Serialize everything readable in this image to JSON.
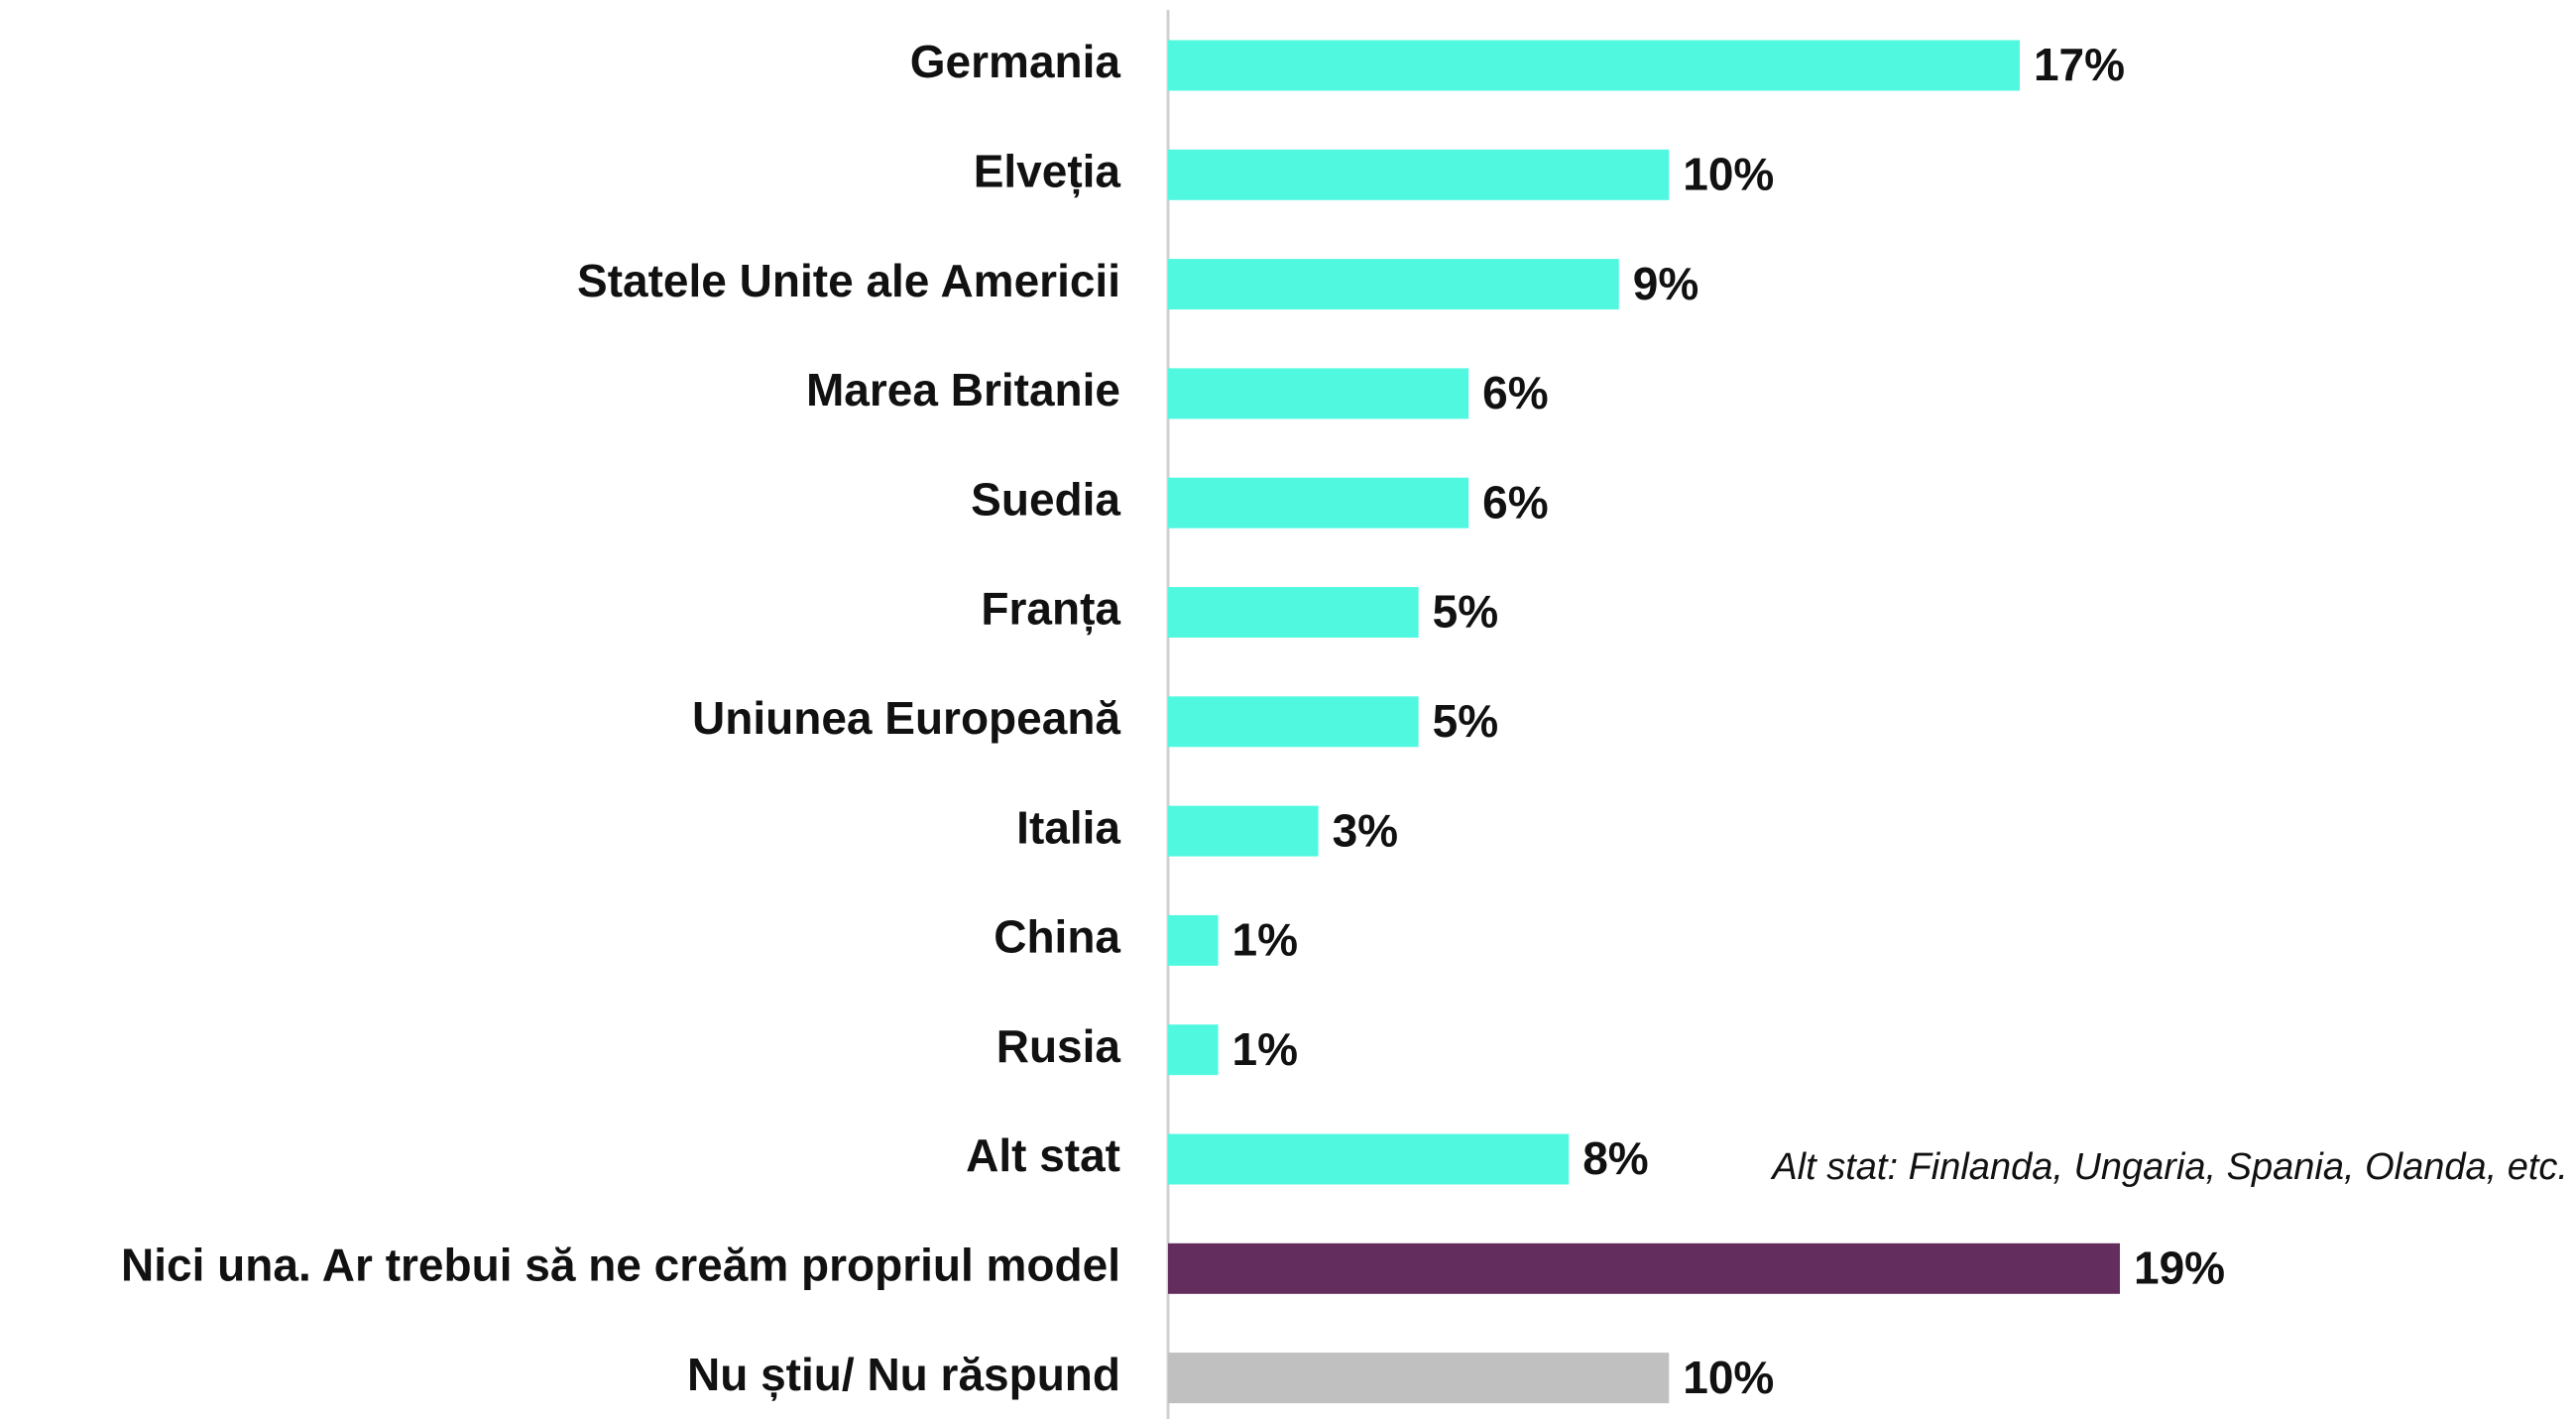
{
  "chart_data": {
    "type": "bar",
    "orientation": "horizontal",
    "categories": [
      "Germania",
      "Elveția",
      "Statele Unite ale Americii",
      "Marea Britanie",
      "Suedia",
      "Franța",
      "Uniunea Europeană",
      "Italia",
      "China",
      "Rusia",
      "Alt stat",
      "Nici una. Ar trebui să ne creăm propriul model",
      "Nu știu/ Nu răspund"
    ],
    "values": [
      17,
      10,
      9,
      6,
      6,
      5,
      5,
      3,
      1,
      1,
      8,
      19,
      10
    ],
    "value_labels": [
      "17%",
      "10%",
      "9%",
      "6%",
      "6%",
      "5%",
      "5%",
      "3%",
      "1%",
      "1%",
      "8%",
      "19%",
      "10%"
    ],
    "colors": [
      "#50f8e0",
      "#50f8e0",
      "#50f8e0",
      "#50f8e0",
      "#50f8e0",
      "#50f8e0",
      "#50f8e0",
      "#50f8e0",
      "#50f8e0",
      "#50f8e0",
      "#50f8e0",
      "#632e5e",
      "#c0c0c0"
    ],
    "annotation": "Alt stat: Finlanda, Ungaria, Spania, Olanda, etc."
  }
}
